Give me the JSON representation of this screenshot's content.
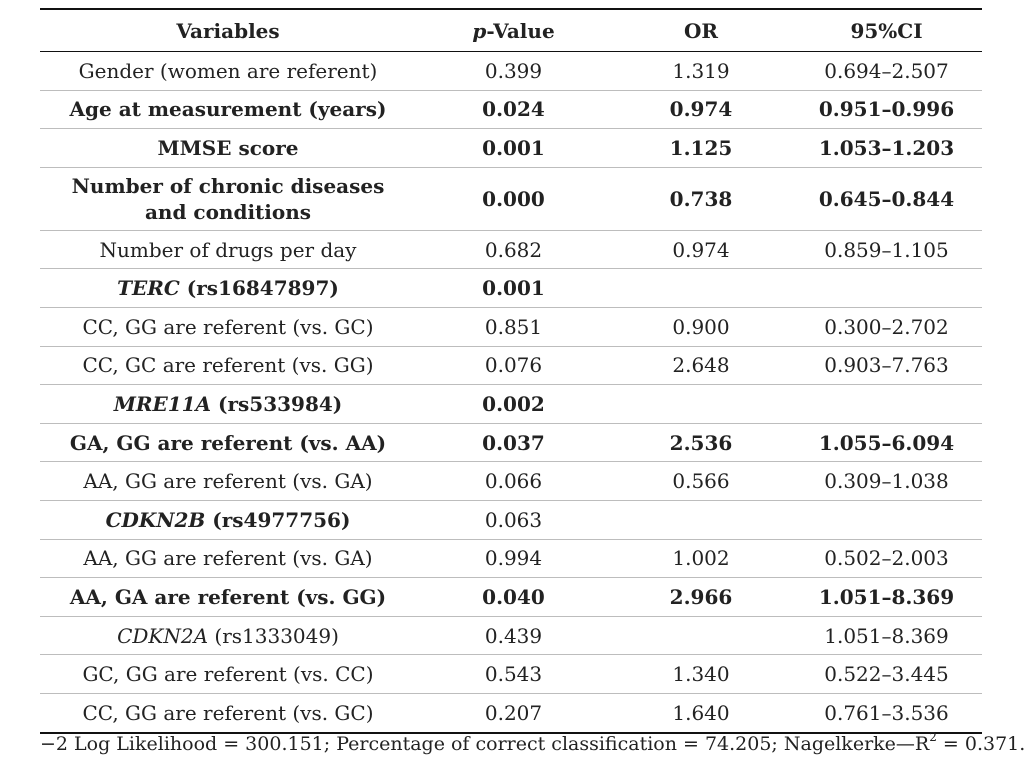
{
  "table": {
    "headers": {
      "variables": "Variables",
      "p_italic": "p",
      "p_rest": "-Value",
      "or": "OR",
      "ci": "95%CI"
    },
    "rows": [
      {
        "label": "Gender (women are referent)",
        "gene": "",
        "suffix": "",
        "p": "0.399",
        "or": "1.319",
        "ci": "0.694–2.507",
        "bold": false,
        "tall": false
      },
      {
        "label": "Age at measurement (years)",
        "gene": "",
        "suffix": "",
        "p": "0.024",
        "or": "0.974",
        "ci": "0.951–0.996",
        "bold": true,
        "tall": false
      },
      {
        "label": "MMSE score",
        "gene": "",
        "suffix": "",
        "p": "0.001",
        "or": "1.125",
        "ci": "1.053–1.203",
        "bold": true,
        "tall": false
      },
      {
        "label": "Number of chronic diseases and conditions",
        "gene": "",
        "suffix": "",
        "p": "0.000",
        "or": "0.738",
        "ci": "0.645–0.844",
        "bold": true,
        "tall": true
      },
      {
        "label": "Number of drugs per day",
        "gene": "",
        "suffix": "",
        "p": "0.682",
        "or": "0.974",
        "ci": "0.859–1.105",
        "bold": false,
        "tall": false
      },
      {
        "label": "",
        "gene": "TERC",
        "suffix": " (rs16847897)",
        "p": "0.001",
        "or": "",
        "ci": "",
        "bold": true,
        "tall": false
      },
      {
        "label": "CC, GG are referent (vs. GC)",
        "gene": "",
        "suffix": "",
        "p": "0.851",
        "or": "0.900",
        "ci": "0.300–2.702",
        "bold": false,
        "tall": false
      },
      {
        "label": "CC, GC are referent (vs. GG)",
        "gene": "",
        "suffix": "",
        "p": "0.076",
        "or": "2.648",
        "ci": "0.903–7.763",
        "bold": false,
        "tall": false
      },
      {
        "label": "",
        "gene": "MRE11A",
        "suffix": " (rs533984)",
        "p": "0.002",
        "or": "",
        "ci": "",
        "bold": true,
        "tall": false
      },
      {
        "label": "GA, GG are referent (vs. AA)",
        "gene": "",
        "suffix": "",
        "p": "0.037",
        "or": "2.536",
        "ci": "1.055–6.094",
        "bold": true,
        "tall": false
      },
      {
        "label": "AA, GG are referent (vs. GA)",
        "gene": "",
        "suffix": "",
        "p": "0.066",
        "or": "0.566",
        "ci": "0.309–1.038",
        "bold": false,
        "tall": false
      },
      {
        "label": "",
        "gene": "CDKN2B",
        "suffix": " (rs4977756)",
        "p": "0.063",
        "or": "",
        "ci": "",
        "bold": false,
        "gene_bold": true,
        "tall": false
      },
      {
        "label": "AA, GG are referent (vs. GA)",
        "gene": "",
        "suffix": "",
        "p": "0.994",
        "or": "1.002",
        "ci": "0.502–2.003",
        "bold": false,
        "tall": false
      },
      {
        "label": "AA, GA are referent (vs. GG)",
        "gene": "",
        "suffix": "",
        "p": "0.040",
        "or": "2.966",
        "ci": "1.051–8.369",
        "bold": true,
        "tall": false
      },
      {
        "label": "",
        "gene": "CDKN2A",
        "suffix": " (rs1333049)",
        "p": "0.439",
        "or": "",
        "ci": "1.051–8.369",
        "bold": false,
        "tall": false
      },
      {
        "label": "GC, GG are referent (vs. CC)",
        "gene": "",
        "suffix": "",
        "p": "0.543",
        "or": "1.340",
        "ci": "0.522–3.445",
        "bold": false,
        "tall": false
      },
      {
        "label": "CC, GG are referent (vs. GC)",
        "gene": "",
        "suffix": "",
        "p": "0.207",
        "or": "1.640",
        "ci": "0.761–3.536",
        "bold": false,
        "tall": false
      }
    ]
  },
  "footer": {
    "text": "−2 Log Likelihood = 300.151; Percentage of correct classification = 74.205; Nagelkerke—R",
    "sup": "2",
    "tail": " = 0.371."
  }
}
